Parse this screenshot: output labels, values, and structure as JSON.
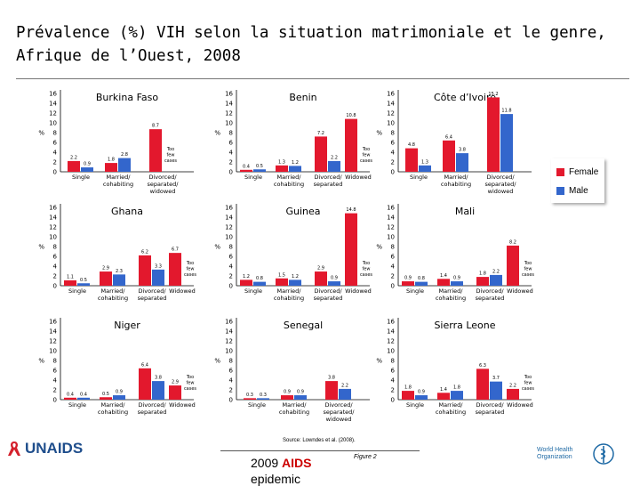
{
  "title": "Prévalence (%) VIH selon la situation matrimoniale et le genre, Afrique de l’Ouest, 2008",
  "colors": {
    "female": "#e3182d",
    "male": "#3366cc"
  },
  "legend": {
    "female": "Female",
    "male": "Male"
  },
  "source": "Source: Lowndes et al. (2008).",
  "figure_label": "Figure 2",
  "footer": {
    "year": "2009",
    "accent": "AIDS",
    "continued": "epidemic"
  },
  "logos": {
    "unaids": "UNAIDS",
    "who_line1": "World Health",
    "who_line2": "Organization"
  },
  "chart_data": [
    {
      "type": "bar",
      "title": "Burkina Faso",
      "ylabel": "%",
      "ylim": [
        0,
        16
      ],
      "yticks": [
        0,
        2,
        4,
        6,
        8,
        10,
        12,
        14,
        16
      ],
      "categories": [
        "Single",
        "Married/ cohabiting",
        "Divorced/ separated/ widowed"
      ],
      "series": [
        {
          "name": "Female",
          "values": [
            2.2,
            1.8,
            8.7
          ]
        },
        {
          "name": "Male",
          "values": [
            0.9,
            2.8,
            null
          ]
        }
      ],
      "data_labels": [
        {
          "Female": "2.2",
          "Male": "0.9"
        },
        {
          "Female": "1.8",
          "Male": "2.8"
        },
        {
          "Female": "8.7",
          "Male": "Too few cases"
        }
      ]
    },
    {
      "type": "bar",
      "title": "Benin",
      "ylabel": "%",
      "ylim": [
        0,
        16
      ],
      "yticks": [
        0,
        2,
        4,
        6,
        8,
        10,
        12,
        14,
        16
      ],
      "categories": [
        "Single",
        "Married/ cohabiting",
        "Divorced/ separated",
        "Widowed"
      ],
      "series": [
        {
          "name": "Female",
          "values": [
            0.4,
            1.3,
            7.2,
            10.8
          ]
        },
        {
          "name": "Male",
          "values": [
            0.5,
            1.2,
            2.2,
            null
          ]
        }
      ],
      "data_labels": [
        {
          "Female": "0.4",
          "Male": "0.5"
        },
        {
          "Female": "1.3",
          "Male": "1.2"
        },
        {
          "Female": "7.2",
          "Male": "2.2"
        },
        {
          "Female": "10.8",
          "Male": "Too few cases"
        }
      ]
    },
    {
      "type": "bar",
      "title": "Côte d’Ivoire",
      "ylabel": "%",
      "ylim": [
        0,
        16
      ],
      "yticks": [
        0,
        2,
        4,
        6,
        8,
        10,
        12,
        14,
        16
      ],
      "categories": [
        "Single",
        "Married/ cohabiting",
        "Divorced/ separated/ widowed"
      ],
      "series": [
        {
          "name": "Female",
          "values": [
            4.8,
            6.4,
            15.2
          ]
        },
        {
          "name": "Male",
          "values": [
            1.3,
            3.8,
            11.8
          ]
        }
      ],
      "data_labels": [
        {
          "Female": "4.8",
          "Male": "1.3"
        },
        {
          "Female": "6.4",
          "Male": "3.8"
        },
        {
          "Female": "15.2",
          "Male": "11.8"
        }
      ]
    },
    {
      "type": "bar",
      "title": "Ghana",
      "ylabel": "%",
      "ylim": [
        0,
        16
      ],
      "yticks": [
        0,
        2,
        4,
        6,
        8,
        10,
        12,
        14,
        16
      ],
      "categories": [
        "Single",
        "Married/ cohabiting",
        "Divorced/ separated",
        "Widowed"
      ],
      "series": [
        {
          "name": "Female",
          "values": [
            1.1,
            2.9,
            6.2,
            6.7
          ]
        },
        {
          "name": "Male",
          "values": [
            0.5,
            2.3,
            3.3,
            null
          ]
        }
      ],
      "data_labels": [
        {
          "Female": "1.1",
          "Male": "0.5"
        },
        {
          "Female": "2.9",
          "Male": "2.3"
        },
        {
          "Female": "6.2",
          "Male": "3.3"
        },
        {
          "Female": "6.7",
          "Male": "Too few cases"
        }
      ]
    },
    {
      "type": "bar",
      "title": "Guinea",
      "ylabel": "%",
      "ylim": [
        0,
        16
      ],
      "yticks": [
        0,
        2,
        4,
        6,
        8,
        10,
        12,
        14,
        16
      ],
      "categories": [
        "Single",
        "Married/ cohabiting",
        "Divorced/ separated",
        "Widowed"
      ],
      "series": [
        {
          "name": "Female",
          "values": [
            1.2,
            1.5,
            2.9,
            14.8
          ]
        },
        {
          "name": "Male",
          "values": [
            0.8,
            1.2,
            0.9,
            null
          ]
        }
      ],
      "data_labels": [
        {
          "Female": "1.2",
          "Male": "0.8"
        },
        {
          "Female": "1.5",
          "Male": "1.2"
        },
        {
          "Female": "2.9",
          "Male": "0.9"
        },
        {
          "Female": "14.8",
          "Male": "Too few cases"
        }
      ]
    },
    {
      "type": "bar",
      "title": "Mali",
      "ylabel": "%",
      "ylim": [
        0,
        16
      ],
      "yticks": [
        0,
        2,
        4,
        6,
        8,
        10,
        12,
        14,
        16
      ],
      "categories": [
        "Single",
        "Married/ cohabiting",
        "Divorced/ separated",
        "Widowed"
      ],
      "series": [
        {
          "name": "Female",
          "values": [
            0.9,
            1.4,
            1.8,
            8.2
          ]
        },
        {
          "name": "Male",
          "values": [
            0.8,
            0.9,
            2.2,
            null
          ]
        }
      ],
      "data_labels": [
        {
          "Female": "0.9",
          "Male": "0.8"
        },
        {
          "Female": "1.4",
          "Male": "0.9"
        },
        {
          "Female": "1.8",
          "Male": "2.2"
        },
        {
          "Female": "8.2",
          "Male": "Too few cases"
        }
      ]
    },
    {
      "type": "bar",
      "title": "Niger",
      "ylabel": "%",
      "ylim": [
        0,
        16
      ],
      "yticks": [
        0,
        2,
        4,
        6,
        8,
        10,
        12,
        14,
        16
      ],
      "categories": [
        "Single",
        "Married/ cohabiting",
        "Divorced/ separated",
        "Widowed"
      ],
      "series": [
        {
          "name": "Female",
          "values": [
            0.4,
            0.5,
            6.4,
            2.9
          ]
        },
        {
          "name": "Male",
          "values": [
            0.4,
            0.9,
            3.8,
            null
          ]
        }
      ],
      "data_labels": [
        {
          "Female": "0.4",
          "Male": "0.4"
        },
        {
          "Female": "0.5",
          "Male": "0.9"
        },
        {
          "Female": "6.4",
          "Male": "3.8"
        },
        {
          "Female": "2.9",
          "Male": "Too few cases"
        }
      ]
    },
    {
      "type": "bar",
      "title": "Senegal",
      "ylabel": "%",
      "ylim": [
        0,
        16
      ],
      "yticks": [
        0,
        2,
        4,
        6,
        8,
        10,
        12,
        14,
        16
      ],
      "categories": [
        "Single",
        "Married/ cohabiting",
        "Divorced/ separated/ widowed"
      ],
      "series": [
        {
          "name": "Female",
          "values": [
            0.3,
            0.9,
            3.8
          ]
        },
        {
          "name": "Male",
          "values": [
            0.3,
            0.9,
            2.2
          ]
        }
      ],
      "data_labels": [
        {
          "Female": "0.3",
          "Male": "0.3"
        },
        {
          "Female": "0.9",
          "Male": "0.9"
        },
        {
          "Female": "3.8",
          "Male": "2.2"
        }
      ]
    },
    {
      "type": "bar",
      "title": "Sierra Leone",
      "ylabel": "%",
      "ylim": [
        0,
        16
      ],
      "yticks": [
        0,
        2,
        4,
        6,
        8,
        10,
        12,
        14,
        16
      ],
      "categories": [
        "Single",
        "Married/ cohabiting",
        "Divorced/ separated",
        "Widowed"
      ],
      "series": [
        {
          "name": "Female",
          "values": [
            1.8,
            1.4,
            6.3,
            2.2
          ]
        },
        {
          "name": "Male",
          "values": [
            0.9,
            1.8,
            3.7,
            null
          ]
        }
      ],
      "data_labels": [
        {
          "Female": "1.8",
          "Male": "0.9"
        },
        {
          "Female": "1.4",
          "Male": "1.8"
        },
        {
          "Female": "6.3",
          "Male": "3.7"
        },
        {
          "Female": "2.2",
          "Male": "Too few cases"
        }
      ]
    }
  ]
}
